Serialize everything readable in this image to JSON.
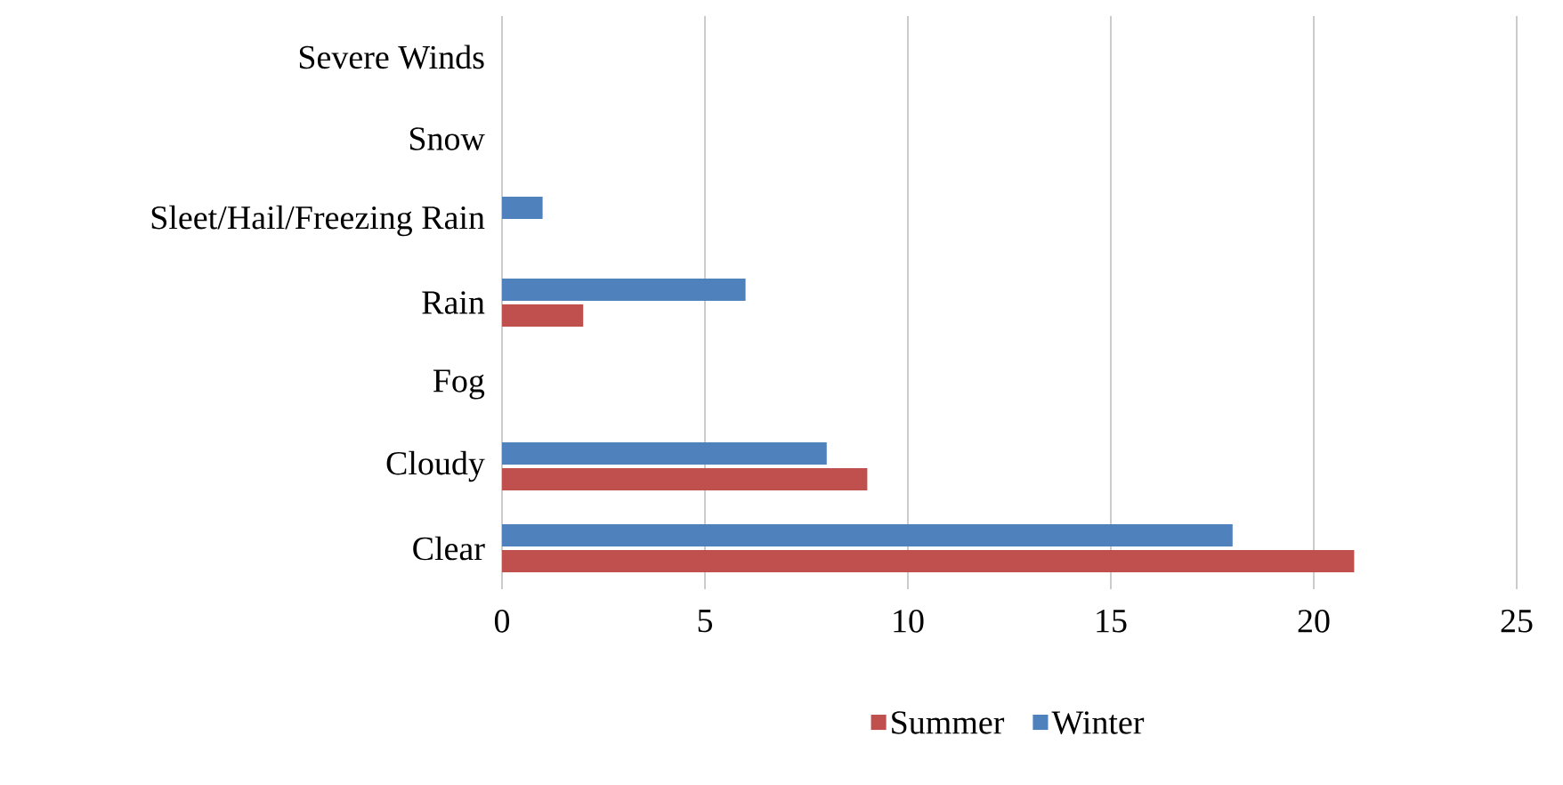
{
  "chart_data": {
    "type": "bar",
    "orientation": "horizontal",
    "categories": [
      "Severe Winds",
      "Snow",
      "Sleet/Hail/Freezing Rain",
      "Rain",
      "Fog",
      "Cloudy",
      "Clear"
    ],
    "series": [
      {
        "name": "Summer",
        "color": "#c0504d",
        "values": [
          0,
          0,
          0,
          2,
          0,
          9,
          21
        ]
      },
      {
        "name": "Winter",
        "color": "#4f81bd",
        "values": [
          0,
          0,
          1,
          6,
          0,
          8,
          18
        ]
      }
    ],
    "xlim": [
      0,
      25
    ],
    "xticks": [
      0,
      5,
      10,
      15,
      20,
      25
    ],
    "grid": "x",
    "legend": "bottom"
  }
}
